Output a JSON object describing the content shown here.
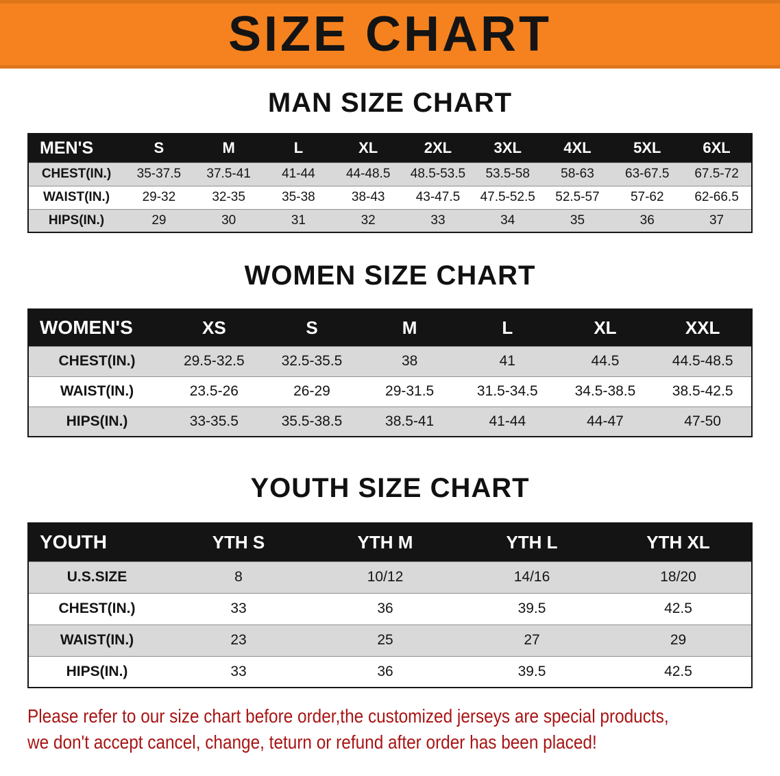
{
  "banner": {
    "title": "SIZE CHART"
  },
  "colors": {
    "banner_bg": "#f5821f",
    "header_bg": "#141414",
    "row_alt": "#d9d9d9",
    "disclaimer_red": "#a81414"
  },
  "sections": [
    {
      "title": "MAN SIZE CHART",
      "header": [
        "MEN'S",
        "S",
        "M",
        "L",
        "XL",
        "2XL",
        "3XL",
        "4XL",
        "5XL",
        "6XL"
      ],
      "rows": [
        [
          "CHEST(IN.)",
          "35-37.5",
          "37.5-41",
          "41-44",
          "44-48.5",
          "48.5-53.5",
          "53.5-58",
          "58-63",
          "63-67.5",
          "67.5-72"
        ],
        [
          "WAIST(IN.)",
          "29-32",
          "32-35",
          "35-38",
          "38-43",
          "43-47.5",
          "47.5-52.5",
          "52.5-57",
          "57-62",
          "62-66.5"
        ],
        [
          "HIPS(IN.)",
          "29",
          "30",
          "31",
          "32",
          "33",
          "34",
          "35",
          "36",
          "37"
        ]
      ]
    },
    {
      "title": "WOMEN SIZE CHART",
      "header": [
        "WOMEN'S",
        "XS",
        "S",
        "M",
        "L",
        "XL",
        "XXL"
      ],
      "rows": [
        [
          "CHEST(IN.)",
          "29.5-32.5",
          "32.5-35.5",
          "38",
          "41",
          "44.5",
          "44.5-48.5"
        ],
        [
          "WAIST(IN.)",
          "23.5-26",
          "26-29",
          "29-31.5",
          "31.5-34.5",
          "34.5-38.5",
          "38.5-42.5"
        ],
        [
          "HIPS(IN.)",
          "33-35.5",
          "35.5-38.5",
          "38.5-41",
          "41-44",
          "44-47",
          "47-50"
        ]
      ]
    },
    {
      "title": "YOUTH SIZE CHART",
      "header": [
        "YOUTH",
        "YTH S",
        "YTH M",
        "YTH L",
        "YTH XL"
      ],
      "rows": [
        [
          "U.S.SIZE",
          "8",
          "10/12",
          "14/16",
          "18/20"
        ],
        [
          "CHEST(IN.)",
          "33",
          "36",
          "39.5",
          "42.5"
        ],
        [
          "WAIST(IN.)",
          "23",
          "25",
          "27",
          "29"
        ],
        [
          "HIPS(IN.)",
          "33",
          "36",
          "39.5",
          "42.5"
        ]
      ]
    }
  ],
  "disclaimer": {
    "line1": "Please refer to our size chart before order,the customized jerseys are special products,",
    "line2": "we don't accept cancel, change, teturn or refund after order has been placed!"
  }
}
